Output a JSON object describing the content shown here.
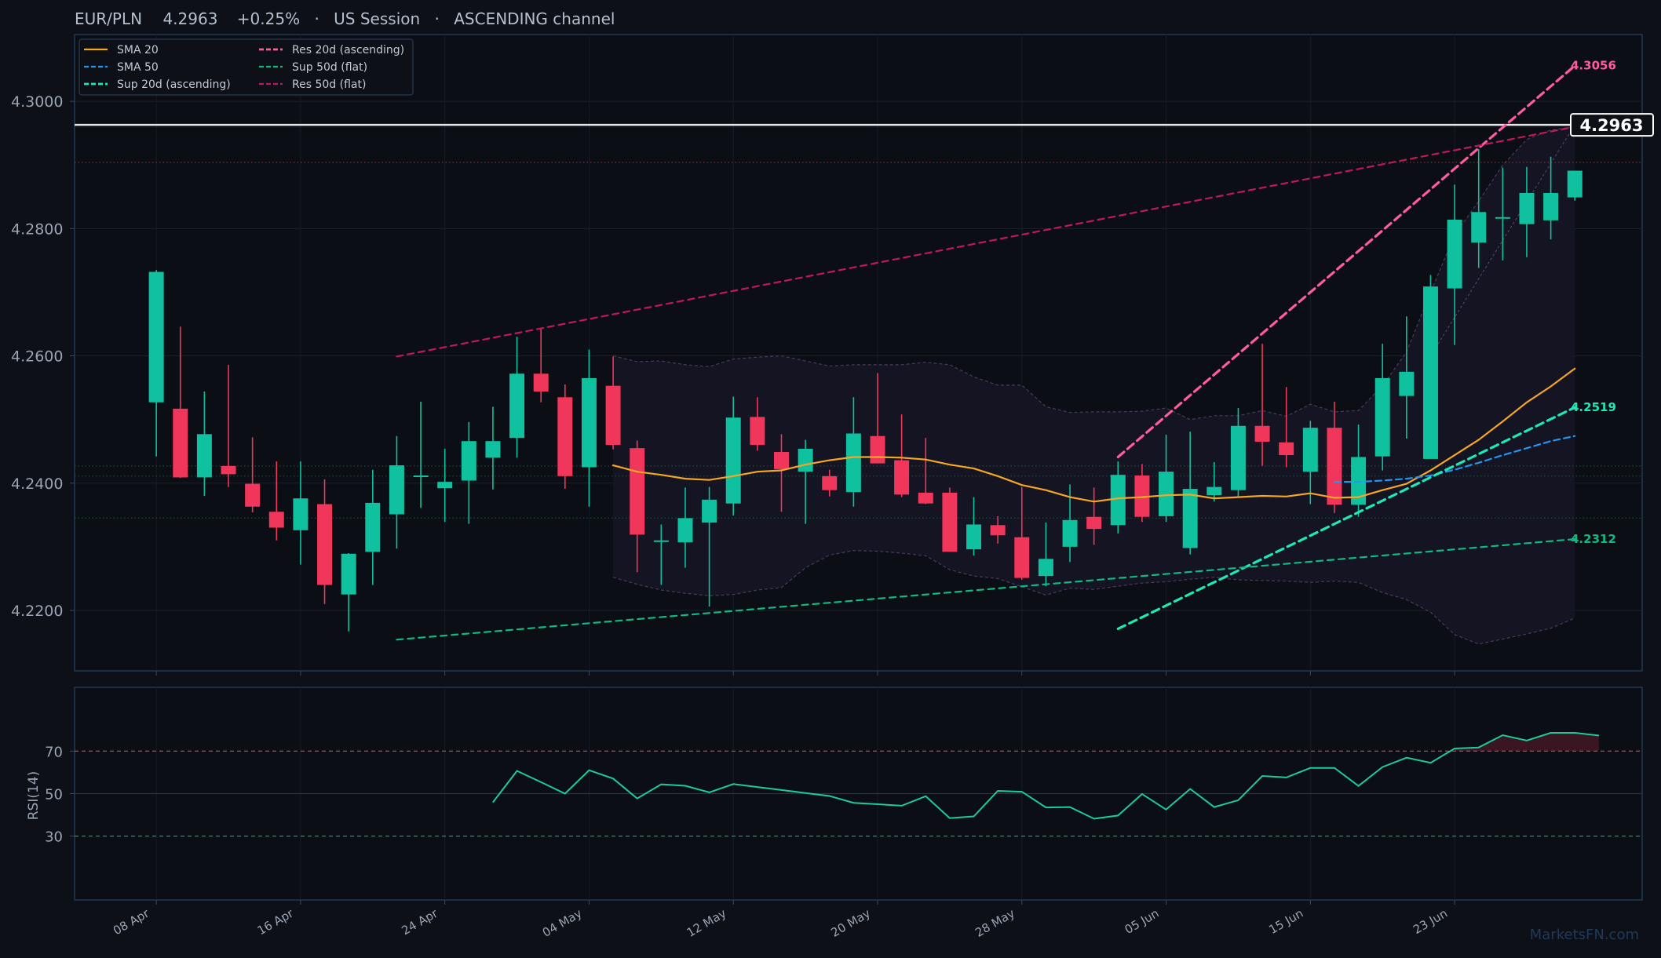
{
  "header": {
    "pair": "EUR/PLN",
    "price": "4.2963",
    "change": "+0.25%",
    "session": "US Session",
    "channel": "ASCENDING channel",
    "separator": "·"
  },
  "watermark": "MarketsFN.com",
  "colors": {
    "background": "#0d1017",
    "bull": "#0fc19e",
    "bear": "#f0365a",
    "sma20": "#f5a623",
    "sma50": "#2196f3",
    "sup20": "#1de9b6",
    "res20": "#ff5c9e",
    "sup50": "#10b981",
    "res50": "#c2185b",
    "rsi": "#1ec99a",
    "frame": "#1f3a55",
    "tick_text": "#9aa4b2"
  },
  "chart_data": [
    {
      "type": "candlestick",
      "title": "EUR/PLN 4.2963 +0.25% · US Session · ASCENDING channel",
      "ylim": [
        4.2105,
        4.3105
      ],
      "xlim": [
        -3.4,
        61.8
      ],
      "yticks": [
        "4.2200",
        "4.2400",
        "4.2600",
        "4.2800",
        "4.3000"
      ],
      "xticks": [
        {
          "label": "08 Apr",
          "index": 0
        },
        {
          "label": "16 Apr",
          "index": 6
        },
        {
          "label": "24 Apr",
          "index": 12
        },
        {
          "label": "04 May",
          "index": 18
        },
        {
          "label": "12 May",
          "index": 24
        },
        {
          "label": "20 May",
          "index": 30
        },
        {
          "label": "28 May",
          "index": 36
        },
        {
          "label": "05 Jun",
          "index": 42
        },
        {
          "label": "15 Jun",
          "index": 48
        },
        {
          "label": "23 Jun",
          "index": 54
        }
      ],
      "candles": [
        {
          "o": 4.2527,
          "h": 4.2735,
          "l": 4.2442,
          "c": 4.2732
        },
        {
          "o": 4.2517,
          "h": 4.2646,
          "l": 4.2408,
          "c": 4.2409
        },
        {
          "o": 4.2409,
          "h": 4.2544,
          "l": 4.238,
          "c": 4.2477
        },
        {
          "o": 4.2427,
          "h": 4.2586,
          "l": 4.2394,
          "c": 4.2414
        },
        {
          "o": 4.2399,
          "h": 4.2472,
          "l": 4.2354,
          "c": 4.2363
        },
        {
          "o": 4.2355,
          "h": 4.2434,
          "l": 4.231,
          "c": 4.233
        },
        {
          "o": 4.2326,
          "h": 4.2434,
          "l": 4.2272,
          "c": 4.2376
        },
        {
          "o": 4.2367,
          "h": 4.2406,
          "l": 4.221,
          "c": 4.224
        },
        {
          "o": 4.2225,
          "h": 4.229,
          "l": 4.2167,
          "c": 4.2289
        },
        {
          "o": 4.2292,
          "h": 4.2421,
          "l": 4.224,
          "c": 4.2369
        },
        {
          "o": 4.2351,
          "h": 4.2474,
          "l": 4.2297,
          "c": 4.2428
        },
        {
          "o": 4.2411,
          "h": 4.2528,
          "l": 4.2361,
          "c": 4.2412
        },
        {
          "o": 4.2392,
          "h": 4.2454,
          "l": 4.2339,
          "c": 4.2402
        },
        {
          "o": 4.2404,
          "h": 4.2496,
          "l": 4.2336,
          "c": 4.2466
        },
        {
          "o": 4.244,
          "h": 4.252,
          "l": 4.239,
          "c": 4.2466
        },
        {
          "o": 4.2471,
          "h": 4.263,
          "l": 4.244,
          "c": 4.2572
        },
        {
          "o": 4.2572,
          "h": 4.2642,
          "l": 4.2527,
          "c": 4.2544
        },
        {
          "o": 4.2535,
          "h": 4.2555,
          "l": 4.2391,
          "c": 4.2411
        },
        {
          "o": 4.2425,
          "h": 4.261,
          "l": 4.2363,
          "c": 4.2565
        },
        {
          "o": 4.2553,
          "h": 4.2599,
          "l": 4.2453,
          "c": 4.246
        },
        {
          "o": 4.2455,
          "h": 4.2467,
          "l": 4.226,
          "c": 4.2319
        },
        {
          "o": 4.231,
          "h": 4.2335,
          "l": 4.224,
          "c": 4.231
        },
        {
          "o": 4.2307,
          "h": 4.2393,
          "l": 4.2267,
          "c": 4.2345
        },
        {
          "o": 4.2338,
          "h": 4.2394,
          "l": 4.2206,
          "c": 4.2374
        },
        {
          "o": 4.2368,
          "h": 4.2536,
          "l": 4.2349,
          "c": 4.2503
        },
        {
          "o": 4.2504,
          "h": 4.2535,
          "l": 4.2451,
          "c": 4.246
        },
        {
          "o": 4.2449,
          "h": 4.2477,
          "l": 4.2355,
          "c": 4.2422
        },
        {
          "o": 4.2418,
          "h": 4.2468,
          "l": 4.2336,
          "c": 4.2454
        },
        {
          "o": 4.2411,
          "h": 4.2421,
          "l": 4.2379,
          "c": 4.2389
        },
        {
          "o": 4.2386,
          "h": 4.2535,
          "l": 4.2363,
          "c": 4.2478
        },
        {
          "o": 4.2474,
          "h": 4.2573,
          "l": 4.2431,
          "c": 4.2431
        },
        {
          "o": 4.2436,
          "h": 4.2508,
          "l": 4.2378,
          "c": 4.2382
        },
        {
          "o": 4.2385,
          "h": 4.2471,
          "l": 4.2367,
          "c": 4.2368
        },
        {
          "o": 4.2385,
          "h": 4.2393,
          "l": 4.2292,
          "c": 4.2292
        },
        {
          "o": 4.2296,
          "h": 4.2378,
          "l": 4.2286,
          "c": 4.2335
        },
        {
          "o": 4.2334,
          "h": 4.2348,
          "l": 4.2305,
          "c": 4.2318
        },
        {
          "o": 4.2315,
          "h": 4.2394,
          "l": 4.2248,
          "c": 4.2251
        },
        {
          "o": 4.2254,
          "h": 4.2338,
          "l": 4.2238,
          "c": 4.2281
        },
        {
          "o": 4.23,
          "h": 4.2398,
          "l": 4.2276,
          "c": 4.2342
        },
        {
          "o": 4.2347,
          "h": 4.2393,
          "l": 4.2303,
          "c": 4.2328
        },
        {
          "o": 4.2334,
          "h": 4.2434,
          "l": 4.2321,
          "c": 4.2413
        },
        {
          "o": 4.2412,
          "h": 4.243,
          "l": 4.2339,
          "c": 4.2347
        },
        {
          "o": 4.2348,
          "h": 4.2476,
          "l": 4.2339,
          "c": 4.2418
        },
        {
          "o": 4.2298,
          "h": 4.2481,
          "l": 4.2288,
          "c": 4.2391
        },
        {
          "o": 4.2381,
          "h": 4.2433,
          "l": 4.2371,
          "c": 4.2394
        },
        {
          "o": 4.2389,
          "h": 4.2518,
          "l": 4.2379,
          "c": 4.249
        },
        {
          "o": 4.249,
          "h": 4.2619,
          "l": 4.2427,
          "c": 4.2465
        },
        {
          "o": 4.2464,
          "h": 4.2551,
          "l": 4.2425,
          "c": 4.2444
        },
        {
          "o": 4.2418,
          "h": 4.2498,
          "l": 4.2367,
          "c": 4.2487
        },
        {
          "o": 4.2487,
          "h": 4.2528,
          "l": 4.2353,
          "c": 4.2366
        },
        {
          "o": 4.2366,
          "h": 4.2492,
          "l": 4.2347,
          "c": 4.2441
        },
        {
          "o": 4.2442,
          "h": 4.2619,
          "l": 4.242,
          "c": 4.2565
        },
        {
          "o": 4.2537,
          "h": 4.2662,
          "l": 4.247,
          "c": 4.2575
        },
        {
          "o": 4.2438,
          "h": 4.2727,
          "l": 4.2438,
          "c": 4.2709
        },
        {
          "o": 4.2706,
          "h": 4.2869,
          "l": 4.2617,
          "c": 4.2814
        },
        {
          "o": 4.2778,
          "h": 4.2925,
          "l": 4.2738,
          "c": 4.2826
        },
        {
          "o": 4.2818,
          "h": 4.2896,
          "l": 4.275,
          "c": 4.2818
        },
        {
          "o": 4.2807,
          "h": 4.2897,
          "l": 4.2755,
          "c": 4.2856
        },
        {
          "o": 4.2813,
          "h": 4.2913,
          "l": 4.2783,
          "c": 4.2856
        },
        {
          "o": 4.2849,
          "h": 4.2891,
          "l": 4.2844,
          "c": 4.2891
        }
      ],
      "series": [
        {
          "name": "SMA 20",
          "style": "solid",
          "start": 19,
          "values": [
            4.2428,
            4.2418,
            4.2413,
            4.2407,
            4.2405,
            4.2411,
            4.2418,
            4.242,
            4.2429,
            4.2436,
            4.2441,
            4.2441,
            4.244,
            4.2437,
            4.2429,
            4.2423,
            4.2411,
            4.2397,
            4.2389,
            4.2378,
            4.2371,
            4.2376,
            4.2378,
            4.2381,
            4.2382,
            4.2376,
            4.2378,
            4.238,
            4.2379,
            4.2384,
            4.2377,
            4.2378,
            4.2389,
            4.2399,
            4.242,
            4.2444,
            4.2468,
            4.2497,
            4.2527,
            4.2552,
            4.258
          ]
        },
        {
          "name": "SMA 50",
          "style": "dashed",
          "start": 49,
          "values": [
            4.2402,
            4.2402,
            4.2404,
            4.2407,
            4.2412,
            4.2421,
            4.2432,
            4.2444,
            4.2455,
            4.2466,
            4.2474
          ]
        },
        {
          "name": "Sup 20d (ascending)",
          "style": "dashed-thick",
          "x": [
            40,
            59
          ],
          "y": [
            4.2171,
            4.2519
          ]
        },
        {
          "name": "Res 20d (ascending)",
          "style": "dashed-thick",
          "x": [
            40,
            59
          ],
          "y": [
            4.2441,
            4.3056
          ]
        },
        {
          "name": "Sup 50d (flat)",
          "style": "dashed",
          "x": [
            10,
            59
          ],
          "y": [
            4.2154,
            4.2312
          ]
        },
        {
          "name": "Res 50d (flat)",
          "style": "dashed",
          "x": [
            10,
            59
          ],
          "y": [
            4.2599,
            4.296
          ]
        }
      ],
      "bollinger": {
        "start": 19,
        "upper": [
          4.26,
          4.2591,
          4.2592,
          4.2586,
          4.2583,
          4.2595,
          4.2598,
          4.26,
          4.2592,
          4.2584,
          4.2586,
          4.2586,
          4.2586,
          4.259,
          4.2586,
          4.2567,
          4.2554,
          4.2554,
          4.252,
          4.2511,
          4.2512,
          4.2512,
          4.2513,
          4.2518,
          4.25,
          4.2506,
          4.2506,
          4.2514,
          4.2505,
          4.2524,
          4.2512,
          4.2514,
          4.2553,
          4.2606,
          4.27,
          4.279,
          4.2843,
          4.29,
          4.294,
          4.2955,
          4.296
        ],
        "lower": [
          4.2252,
          4.2241,
          4.2232,
          4.2227,
          4.2223,
          4.2225,
          4.2232,
          4.2236,
          4.2267,
          4.2287,
          4.2294,
          4.2293,
          4.229,
          4.2286,
          4.2264,
          4.2254,
          4.225,
          4.2237,
          4.2224,
          4.2235,
          4.2233,
          4.2238,
          4.2243,
          4.2245,
          4.2249,
          4.2252,
          4.2248,
          4.2247,
          4.2246,
          4.2244,
          4.2246,
          4.2244,
          4.2228,
          4.2217,
          4.2197,
          4.2162,
          4.2147,
          4.2155,
          4.2163,
          4.2172,
          4.2188
        ]
      },
      "guides": {
        "current_price": 4.2963,
        "dotted_levels": [
          {
            "value": 4.2904,
            "color": "#7a3030"
          },
          {
            "value": 4.2427,
            "color": "#1c4a36"
          },
          {
            "value": 4.2411,
            "color": "#1c4a36"
          },
          {
            "value": 4.2345,
            "color": "#1c4a36"
          }
        ],
        "thin_dash": {
          "x": [
            53,
            59
          ],
          "y": [
            4.26,
            4.2963
          ]
        }
      },
      "price_tag": "4.2963",
      "end_labels": [
        {
          "text": "4.3056",
          "value": 4.3056,
          "color": "#ff5c9e"
        },
        {
          "text": "4.2519",
          "value": 4.2519,
          "color": "#1de9b6"
        },
        {
          "text": "4.2312",
          "value": 4.2312,
          "color": "#10b981"
        }
      ],
      "legend": {
        "placement": "top-left"
      }
    },
    {
      "type": "line",
      "ylabel": "RSI(14)",
      "ylim": [
        0,
        100
      ],
      "yticks": [
        "30",
        "50",
        "70"
      ],
      "levels": [
        70,
        50,
        30
      ],
      "series": [
        {
          "name": "RSI(14)",
          "start": 14,
          "values": [
            45.9,
            60.7,
            55.4,
            50.0,
            61.0,
            57.1,
            47.7,
            54.4,
            53.7,
            50.6,
            54.5,
            53.1,
            51.7,
            50.3,
            48.9,
            45.7,
            45.0,
            44.3,
            48.8,
            38.5,
            39.3,
            51.3,
            50.9,
            43.5,
            43.7,
            38.2,
            39.7,
            49.8,
            42.5,
            52.2,
            43.7,
            46.9,
            58.3,
            57.6,
            62.1,
            62.1,
            53.6,
            62.5,
            66.9,
            64.5,
            71.2,
            71.7,
            77.5,
            75.0,
            78.6,
            78.6,
            77.3
          ]
        }
      ]
    }
  ]
}
